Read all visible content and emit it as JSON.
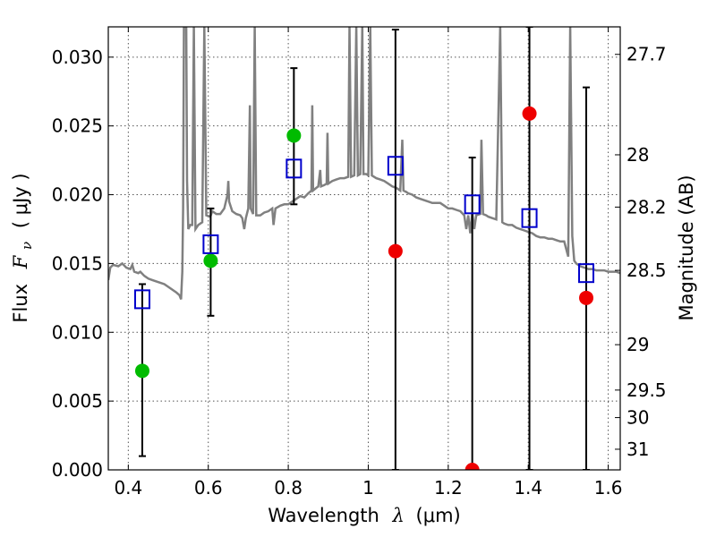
{
  "chart_data": {
    "type": "scatter",
    "xlabel_text": "Wavelength",
    "xlabel_math": "λ",
    "xlabel_unit": "(μm)",
    "ylabel_text": "Flux",
    "ylabel_math": "F",
    "ylabel_sub": "ν",
    "ylabel_unit": "( μJy )",
    "ylabel_right": "Magnitude (AB)",
    "xlim": [
      0.35,
      1.63
    ],
    "ylim": [
      0.0,
      0.0322
    ],
    "x_ticks": [
      0.4,
      0.6,
      0.8,
      1.0,
      1.2,
      1.4,
      1.6
    ],
    "x_tick_labels": [
      "0.4",
      "0.6",
      "0.8",
      "1",
      "1.2",
      "1.4",
      "1.6"
    ],
    "y_ticks": [
      0.0,
      0.005,
      0.01,
      0.015,
      0.02,
      0.025,
      0.03
    ],
    "y_tick_labels": [
      "0.000",
      "0.005",
      "0.010",
      "0.015",
      "0.020",
      "0.025",
      "0.030"
    ],
    "right_ticks": [
      {
        "label": "27.7",
        "flux": 0.0302
      },
      {
        "label": "28",
        "flux": 0.0229
      },
      {
        "label": "28.2",
        "flux": 0.0191
      },
      {
        "label": "28.5",
        "flux": 0.0145
      },
      {
        "label": "29",
        "flux": 0.0091
      },
      {
        "label": "29.5",
        "flux": 0.0058
      },
      {
        "label": "30",
        "flux": 0.0038
      },
      {
        "label": "31",
        "flux": 0.0015
      }
    ],
    "grid": true,
    "colors": {
      "template": "#808080",
      "model": "#0000cc",
      "green": "#00bb00",
      "red": "#ee0000",
      "errorbar": "#000000"
    },
    "template_spectrum": [
      [
        0.35,
        0.0138
      ],
      [
        0.355,
        0.0147
      ],
      [
        0.362,
        0.0149
      ],
      [
        0.375,
        0.0148
      ],
      [
        0.385,
        0.015
      ],
      [
        0.395,
        0.0147
      ],
      [
        0.405,
        0.0146
      ],
      [
        0.41,
        0.0149
      ],
      [
        0.415,
        0.0144
      ],
      [
        0.425,
        0.0143
      ],
      [
        0.43,
        0.0144
      ],
      [
        0.44,
        0.0141
      ],
      [
        0.45,
        0.0139
      ],
      [
        0.46,
        0.0138
      ],
      [
        0.47,
        0.0137
      ],
      [
        0.48,
        0.0136
      ],
      [
        0.49,
        0.0135
      ],
      [
        0.5,
        0.0133
      ],
      [
        0.51,
        0.0131
      ],
      [
        0.52,
        0.0129
      ],
      [
        0.528,
        0.0127
      ],
      [
        0.532,
        0.0124
      ],
      [
        0.535,
        0.0144
      ],
      [
        0.537,
        0.019
      ],
      [
        0.539,
        0.0322
      ],
      [
        0.545,
        0.0322
      ],
      [
        0.547,
        0.021
      ],
      [
        0.55,
        0.0175
      ],
      [
        0.555,
        0.0178
      ],
      [
        0.56,
        0.0178
      ],
      [
        0.564,
        0.0322
      ],
      [
        0.568,
        0.0175
      ],
      [
        0.575,
        0.0178
      ],
      [
        0.585,
        0.018
      ],
      [
        0.59,
        0.0322
      ],
      [
        0.595,
        0.0185
      ],
      [
        0.605,
        0.0184
      ],
      [
        0.61,
        0.0188
      ],
      [
        0.62,
        0.0186
      ],
      [
        0.63,
        0.0186
      ],
      [
        0.64,
        0.019
      ],
      [
        0.648,
        0.02
      ],
      [
        0.65,
        0.021
      ],
      [
        0.652,
        0.0195
      ],
      [
        0.66,
        0.0188
      ],
      [
        0.67,
        0.0186
      ],
      [
        0.68,
        0.0185
      ],
      [
        0.685,
        0.0183
      ],
      [
        0.69,
        0.0175
      ],
      [
        0.694,
        0.0183
      ],
      [
        0.7,
        0.019
      ],
      [
        0.704,
        0.0265
      ],
      [
        0.706,
        0.019
      ],
      [
        0.712,
        0.0186
      ],
      [
        0.716,
        0.0322
      ],
      [
        0.72,
        0.0185
      ],
      [
        0.73,
        0.0185
      ],
      [
        0.74,
        0.0187
      ],
      [
        0.75,
        0.0188
      ],
      [
        0.76,
        0.019
      ],
      [
        0.763,
        0.0178
      ],
      [
        0.768,
        0.019
      ],
      [
        0.78,
        0.0192
      ],
      [
        0.79,
        0.0193
      ],
      [
        0.8,
        0.0193
      ],
      [
        0.81,
        0.0195
      ],
      [
        0.82,
        0.0197
      ],
      [
        0.83,
        0.0199
      ],
      [
        0.84,
        0.0198
      ],
      [
        0.85,
        0.0201
      ],
      [
        0.858,
        0.0203
      ],
      [
        0.86,
        0.0265
      ],
      [
        0.862,
        0.0203
      ],
      [
        0.87,
        0.0205
      ],
      [
        0.875,
        0.0206
      ],
      [
        0.88,
        0.0218
      ],
      [
        0.882,
        0.0206
      ],
      [
        0.89,
        0.0207
      ],
      [
        0.896,
        0.0208
      ],
      [
        0.898,
        0.0245
      ],
      [
        0.9,
        0.0208
      ],
      [
        0.91,
        0.021
      ],
      [
        0.92,
        0.0211
      ],
      [
        0.93,
        0.0212
      ],
      [
        0.94,
        0.0212
      ],
      [
        0.95,
        0.0213
      ],
      [
        0.953,
        0.0322
      ],
      [
        0.957,
        0.0213
      ],
      [
        0.965,
        0.0214
      ],
      [
        0.97,
        0.0322
      ],
      [
        0.974,
        0.0214
      ],
      [
        0.98,
        0.0215
      ],
      [
        0.985,
        0.0322
      ],
      [
        0.988,
        0.0215
      ],
      [
        0.995,
        0.0215
      ],
      [
        1.0,
        0.0214
      ],
      [
        1.005,
        0.0322
      ],
      [
        1.009,
        0.0214
      ],
      [
        1.02,
        0.0212
      ],
      [
        1.03,
        0.0211
      ],
      [
        1.04,
        0.021
      ],
      [
        1.05,
        0.0208
      ],
      [
        1.06,
        0.0206
      ],
      [
        1.07,
        0.0205
      ],
      [
        1.08,
        0.0203
      ],
      [
        1.085,
        0.024
      ],
      [
        1.088,
        0.0203
      ],
      [
        1.095,
        0.0202
      ],
      [
        1.1,
        0.0201
      ],
      [
        1.11,
        0.02
      ],
      [
        1.12,
        0.0198
      ],
      [
        1.13,
        0.0197
      ],
      [
        1.14,
        0.0196
      ],
      [
        1.15,
        0.0195
      ],
      [
        1.16,
        0.0194
      ],
      [
        1.17,
        0.0194
      ],
      [
        1.18,
        0.0194
      ],
      [
        1.19,
        0.0192
      ],
      [
        1.2,
        0.019
      ],
      [
        1.21,
        0.019
      ],
      [
        1.22,
        0.0189
      ],
      [
        1.23,
        0.0188
      ],
      [
        1.24,
        0.0185
      ],
      [
        1.245,
        0.0175
      ],
      [
        1.25,
        0.0185
      ],
      [
        1.255,
        0.0172
      ],
      [
        1.26,
        0.0187
      ],
      [
        1.265,
        0.0175
      ],
      [
        1.27,
        0.0185
      ],
      [
        1.28,
        0.0186
      ],
      [
        1.283,
        0.024
      ],
      [
        1.287,
        0.0186
      ],
      [
        1.295,
        0.0185
      ],
      [
        1.3,
        0.0184
      ],
      [
        1.31,
        0.0183
      ],
      [
        1.32,
        0.0182
      ],
      [
        1.33,
        0.0322
      ],
      [
        1.335,
        0.018
      ],
      [
        1.34,
        0.0179
      ],
      [
        1.35,
        0.0178
      ],
      [
        1.36,
        0.0178
      ],
      [
        1.37,
        0.0176
      ],
      [
        1.38,
        0.0175
      ],
      [
        1.39,
        0.0174
      ],
      [
        1.4,
        0.0173
      ],
      [
        1.41,
        0.0172
      ],
      [
        1.42,
        0.017
      ],
      [
        1.43,
        0.0169
      ],
      [
        1.44,
        0.0169
      ],
      [
        1.45,
        0.0168
      ],
      [
        1.46,
        0.0168
      ],
      [
        1.47,
        0.0167
      ],
      [
        1.48,
        0.0166
      ],
      [
        1.49,
        0.0166
      ],
      [
        1.5,
        0.0155
      ],
      [
        1.505,
        0.0322
      ],
      [
        1.51,
        0.017
      ],
      [
        1.515,
        0.0152
      ],
      [
        1.52,
        0.015
      ],
      [
        1.53,
        0.0148
      ],
      [
        1.54,
        0.0147
      ],
      [
        1.55,
        0.0146
      ],
      [
        1.56,
        0.0146
      ],
      [
        1.57,
        0.0145
      ],
      [
        1.58,
        0.0145
      ],
      [
        1.59,
        0.0145
      ],
      [
        1.6,
        0.0144
      ],
      [
        1.61,
        0.0144
      ],
      [
        1.62,
        0.0144
      ],
      [
        1.63,
        0.0143
      ]
    ],
    "model_points": [
      {
        "x": 0.435,
        "y": 0.0124
      },
      {
        "x": 0.606,
        "y": 0.0164
      },
      {
        "x": 0.814,
        "y": 0.0219
      },
      {
        "x": 1.068,
        "y": 0.0221
      },
      {
        "x": 1.26,
        "y": 0.0193
      },
      {
        "x": 1.403,
        "y": 0.0183
      },
      {
        "x": 1.545,
        "y": 0.0143
      }
    ],
    "observed_points": [
      {
        "x": 0.435,
        "y": 0.0072,
        "color": "green",
        "err_low": 0.001,
        "err_high": 0.0135
      },
      {
        "x": 0.606,
        "y": 0.0152,
        "color": "green",
        "err_low": 0.0112,
        "err_high": 0.019
      },
      {
        "x": 0.814,
        "y": 0.0243,
        "color": "green",
        "err_low": 0.0193,
        "err_high": 0.0292
      },
      {
        "x": 1.068,
        "y": 0.0159,
        "color": "red",
        "err_low": 0.0,
        "err_high": 0.032
      },
      {
        "x": 1.26,
        "y": 0.0,
        "color": "red",
        "err_low": 0.0,
        "err_high": 0.0227
      },
      {
        "x": 1.403,
        "y": 0.0259,
        "color": "red",
        "err_low": 0.0,
        "err_high": 0.0322
      },
      {
        "x": 1.545,
        "y": 0.0125,
        "color": "red",
        "err_low": 0.0,
        "err_high": 0.0278
      }
    ]
  }
}
